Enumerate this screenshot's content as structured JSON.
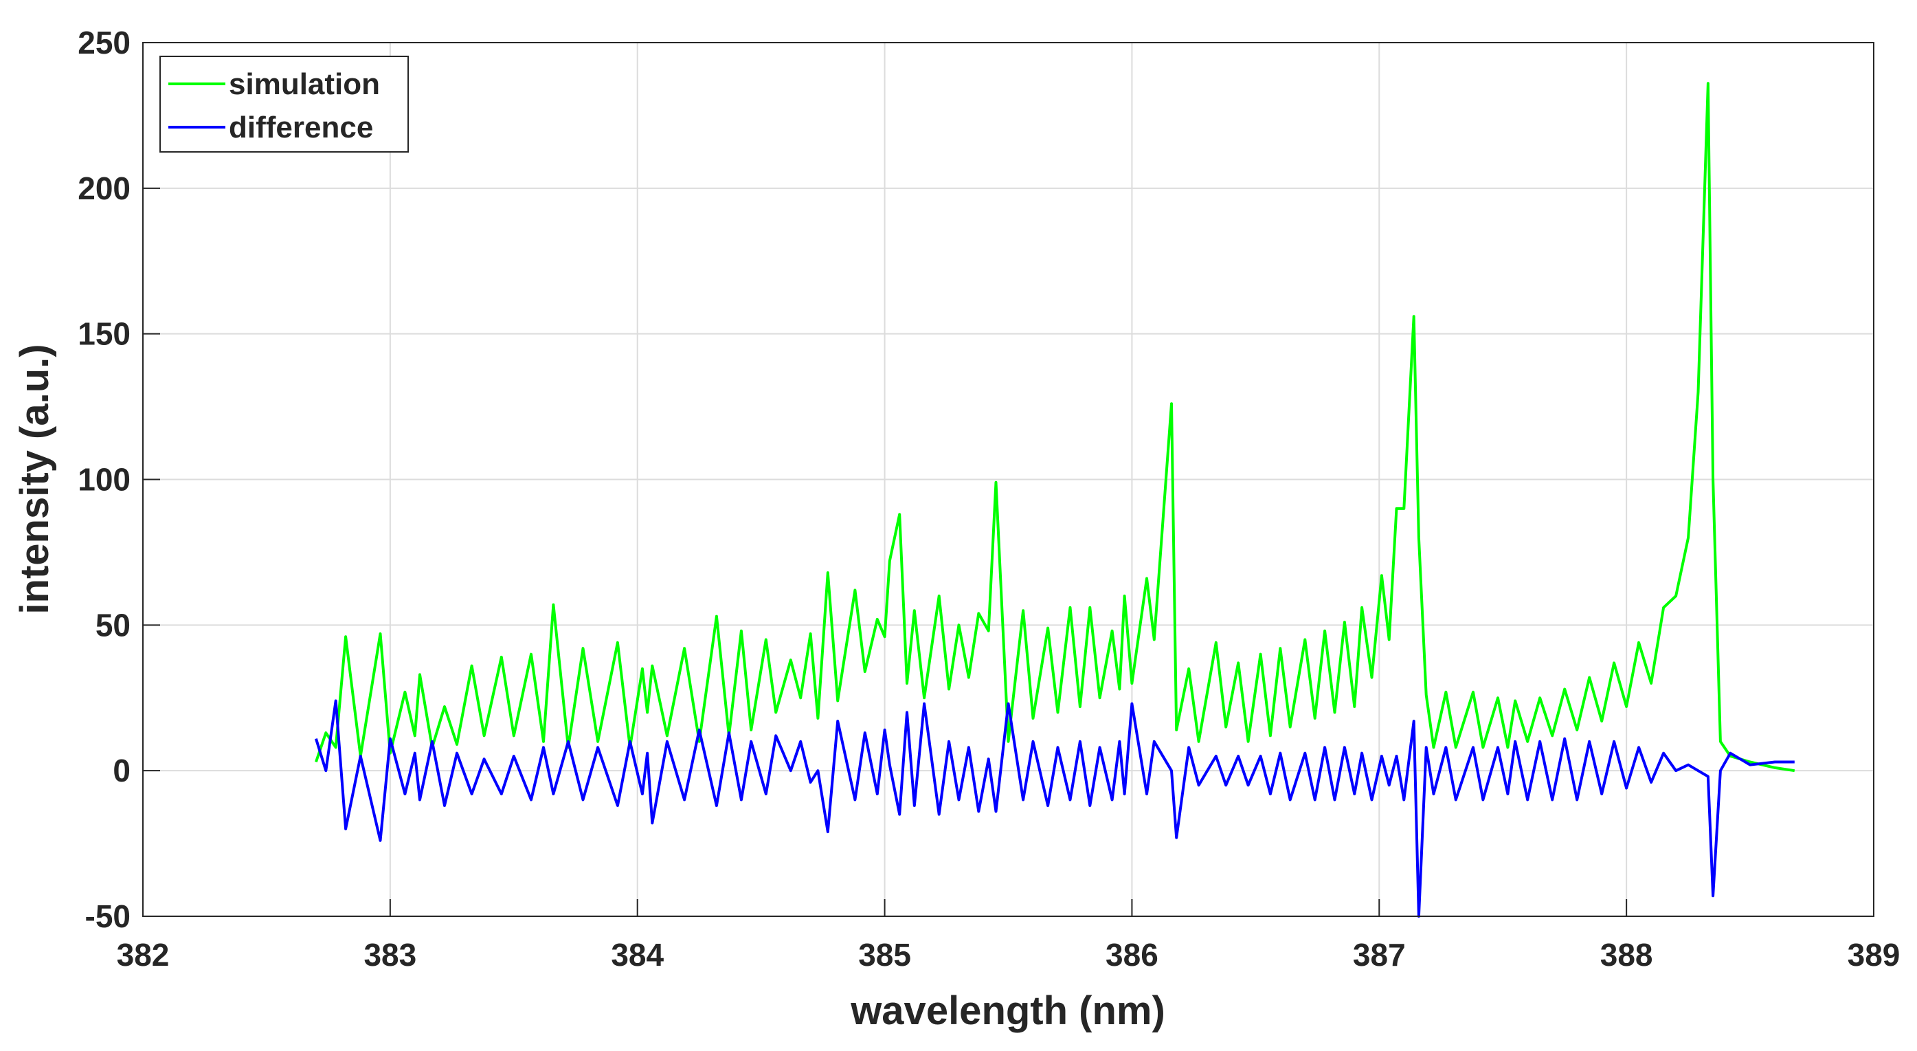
{
  "chart_data": {
    "type": "line",
    "xlabel": "wavelength (nm)",
    "ylabel": "intensity (a.u.)",
    "xlim": [
      382,
      389
    ],
    "xticks": [
      382,
      383,
      384,
      385,
      386,
      387,
      388,
      389
    ],
    "ylim": [
      -50,
      250
    ],
    "yticks": [
      -50,
      0,
      50,
      100,
      150,
      200,
      250
    ],
    "grid": true,
    "legend": "upper left",
    "x": [
      382.7,
      382.74,
      382.78,
      382.82,
      382.88,
      382.96,
      383.0,
      383.06,
      383.1,
      383.12,
      383.17,
      383.22,
      383.27,
      383.33,
      383.38,
      383.45,
      383.5,
      383.57,
      383.62,
      383.66,
      383.72,
      383.78,
      383.84,
      383.92,
      383.97,
      384.02,
      384.04,
      384.06,
      384.12,
      384.19,
      384.25,
      384.32,
      384.37,
      384.42,
      384.46,
      384.52,
      384.56,
      384.62,
      384.66,
      384.7,
      384.73,
      384.77,
      384.81,
      384.88,
      384.92,
      384.97,
      385.0,
      385.02,
      385.06,
      385.09,
      385.12,
      385.16,
      385.22,
      385.26,
      385.3,
      385.34,
      385.38,
      385.42,
      385.45,
      385.5,
      385.56,
      385.6,
      385.66,
      385.7,
      385.75,
      385.79,
      385.83,
      385.87,
      385.92,
      385.95,
      385.97,
      386.0,
      386.06,
      386.09,
      386.16,
      386.18,
      386.23,
      386.27,
      386.34,
      386.38,
      386.43,
      386.47,
      386.52,
      386.56,
      386.6,
      386.64,
      386.7,
      386.74,
      386.78,
      386.82,
      386.86,
      386.9,
      386.93,
      386.97,
      387.01,
      387.04,
      387.07,
      387.1,
      387.14,
      387.16,
      387.19,
      387.22,
      387.27,
      387.31,
      387.38,
      387.42,
      387.48,
      387.52,
      387.55,
      387.6,
      387.65,
      387.7,
      387.75,
      387.8,
      387.85,
      387.9,
      387.95,
      388.0,
      388.05,
      388.1,
      388.15,
      388.2,
      388.25,
      388.29,
      388.33,
      388.35,
      388.38,
      388.42,
      388.5,
      388.6,
      388.68
    ],
    "series": [
      {
        "name": "simulation",
        "color": "#00ff00",
        "values": [
          3,
          13,
          8,
          46,
          5,
          47,
          6,
          27,
          12,
          33,
          8,
          22,
          9,
          36,
          12,
          39,
          12,
          40,
          10,
          57,
          8,
          42,
          10,
          44,
          8,
          35,
          20,
          36,
          12,
          42,
          10,
          53,
          12,
          48,
          14,
          45,
          20,
          38,
          25,
          47,
          18,
          68,
          24,
          62,
          34,
          52,
          46,
          72,
          88,
          30,
          55,
          25,
          60,
          28,
          50,
          32,
          54,
          48,
          99,
          10,
          55,
          18,
          49,
          20,
          56,
          22,
          56,
          25,
          48,
          28,
          60,
          30,
          66,
          45,
          126,
          14,
          35,
          10,
          44,
          15,
          37,
          10,
          40,
          12,
          42,
          15,
          45,
          18,
          48,
          20,
          51,
          22,
          56,
          32,
          67,
          45,
          90,
          90,
          156,
          80,
          26,
          8,
          27,
          8,
          27,
          8,
          25,
          8,
          24,
          10,
          25,
          12,
          28,
          14,
          32,
          17,
          37,
          22,
          44,
          30,
          56,
          60,
          80,
          130,
          236,
          100,
          10,
          5,
          3,
          1,
          0
        ]
      },
      {
        "name": "difference",
        "color": "#0000ff",
        "values": [
          11,
          0,
          24,
          -20,
          5,
          -24,
          11,
          -8,
          6,
          -10,
          10,
          -12,
          6,
          -8,
          4,
          -8,
          5,
          -10,
          8,
          -8,
          10,
          -10,
          8,
          -12,
          10,
          -8,
          6,
          -18,
          10,
          -10,
          14,
          -12,
          13,
          -10,
          10,
          -8,
          12,
          0,
          10,
          -4,
          0,
          -21,
          17,
          -10,
          13,
          -8,
          14,
          2,
          -15,
          20,
          -12,
          23,
          -15,
          10,
          -10,
          8,
          -14,
          4,
          -14,
          23,
          -10,
          10,
          -12,
          8,
          -10,
          10,
          -12,
          8,
          -10,
          10,
          -8,
          23,
          -8,
          10,
          0,
          -23,
          8,
          -5,
          5,
          -5,
          5,
          -5,
          5,
          -8,
          6,
          -10,
          6,
          -10,
          8,
          -10,
          8,
          -8,
          6,
          -10,
          5,
          -5,
          5,
          -10,
          17,
          -50,
          8,
          -8,
          8,
          -10,
          8,
          -10,
          8,
          -8,
          10,
          -10,
          10,
          -10,
          11,
          -10,
          10,
          -8,
          10,
          -6,
          8,
          -4,
          6,
          0,
          2,
          0,
          -2,
          -43,
          0,
          6,
          2,
          3,
          3
        ]
      }
    ]
  }
}
